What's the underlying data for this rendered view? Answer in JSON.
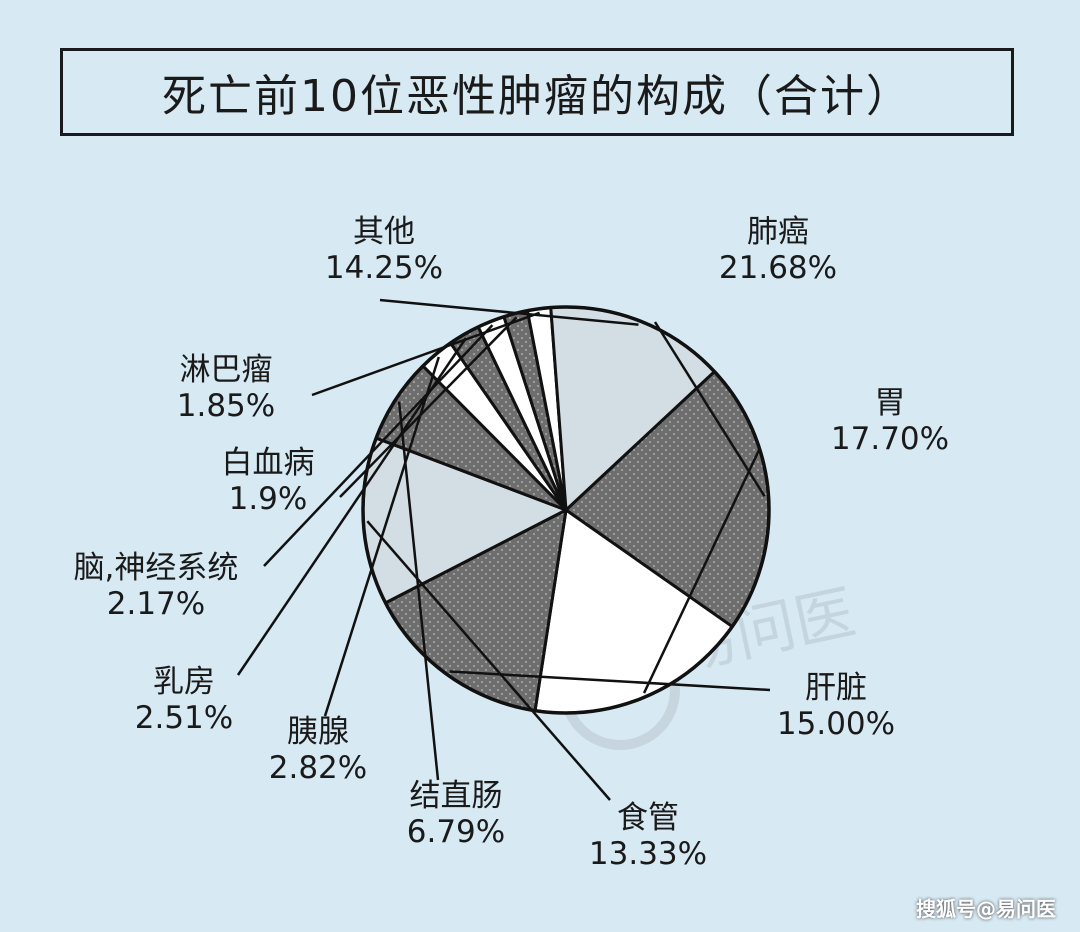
{
  "title": "死亡前10位恶性肿瘤的构成（合计）",
  "footer": "搜狐号@易问医",
  "watermark": "易问医",
  "colors": {
    "background": "#d7e9f3",
    "dark_fill": "#6e6e6e",
    "light_fill": "#d3dde4",
    "white_fill": "#ffffff"
  },
  "chart_data": {
    "type": "pie",
    "title": "死亡前10位恶性肿瘤的构成（合计）",
    "slices": [
      {
        "name": "肺癌",
        "value_label": "21.68%",
        "value": 21.68,
        "fill": "dark"
      },
      {
        "name": "胃",
        "value_label": "17.70%",
        "value": 17.7,
        "fill": "white"
      },
      {
        "name": "肝脏",
        "value_label": "15.00%",
        "value": 15.0,
        "fill": "dark"
      },
      {
        "name": "食管",
        "value_label": "13.33%",
        "value": 13.33,
        "fill": "light"
      },
      {
        "name": "结直肠",
        "value_label": "6.79%",
        "value": 6.79,
        "fill": "dark"
      },
      {
        "name": "胰腺",
        "value_label": "2.82%",
        "value": 2.82,
        "fill": "white"
      },
      {
        "name": "乳房",
        "value_label": "2.51%",
        "value": 2.51,
        "fill": "dark"
      },
      {
        "name": "脑,神经系统",
        "value_label": "2.17%",
        "value": 2.17,
        "fill": "white"
      },
      {
        "name": "白血病",
        "value_label": "1.9%",
        "value": 1.9,
        "fill": "dark"
      },
      {
        "name": "淋巴瘤",
        "value_label": "1.85%",
        "value": 1.85,
        "fill": "white"
      },
      {
        "name": "其他",
        "value_label": "14.25%",
        "value": 14.25,
        "fill": "light"
      }
    ]
  }
}
